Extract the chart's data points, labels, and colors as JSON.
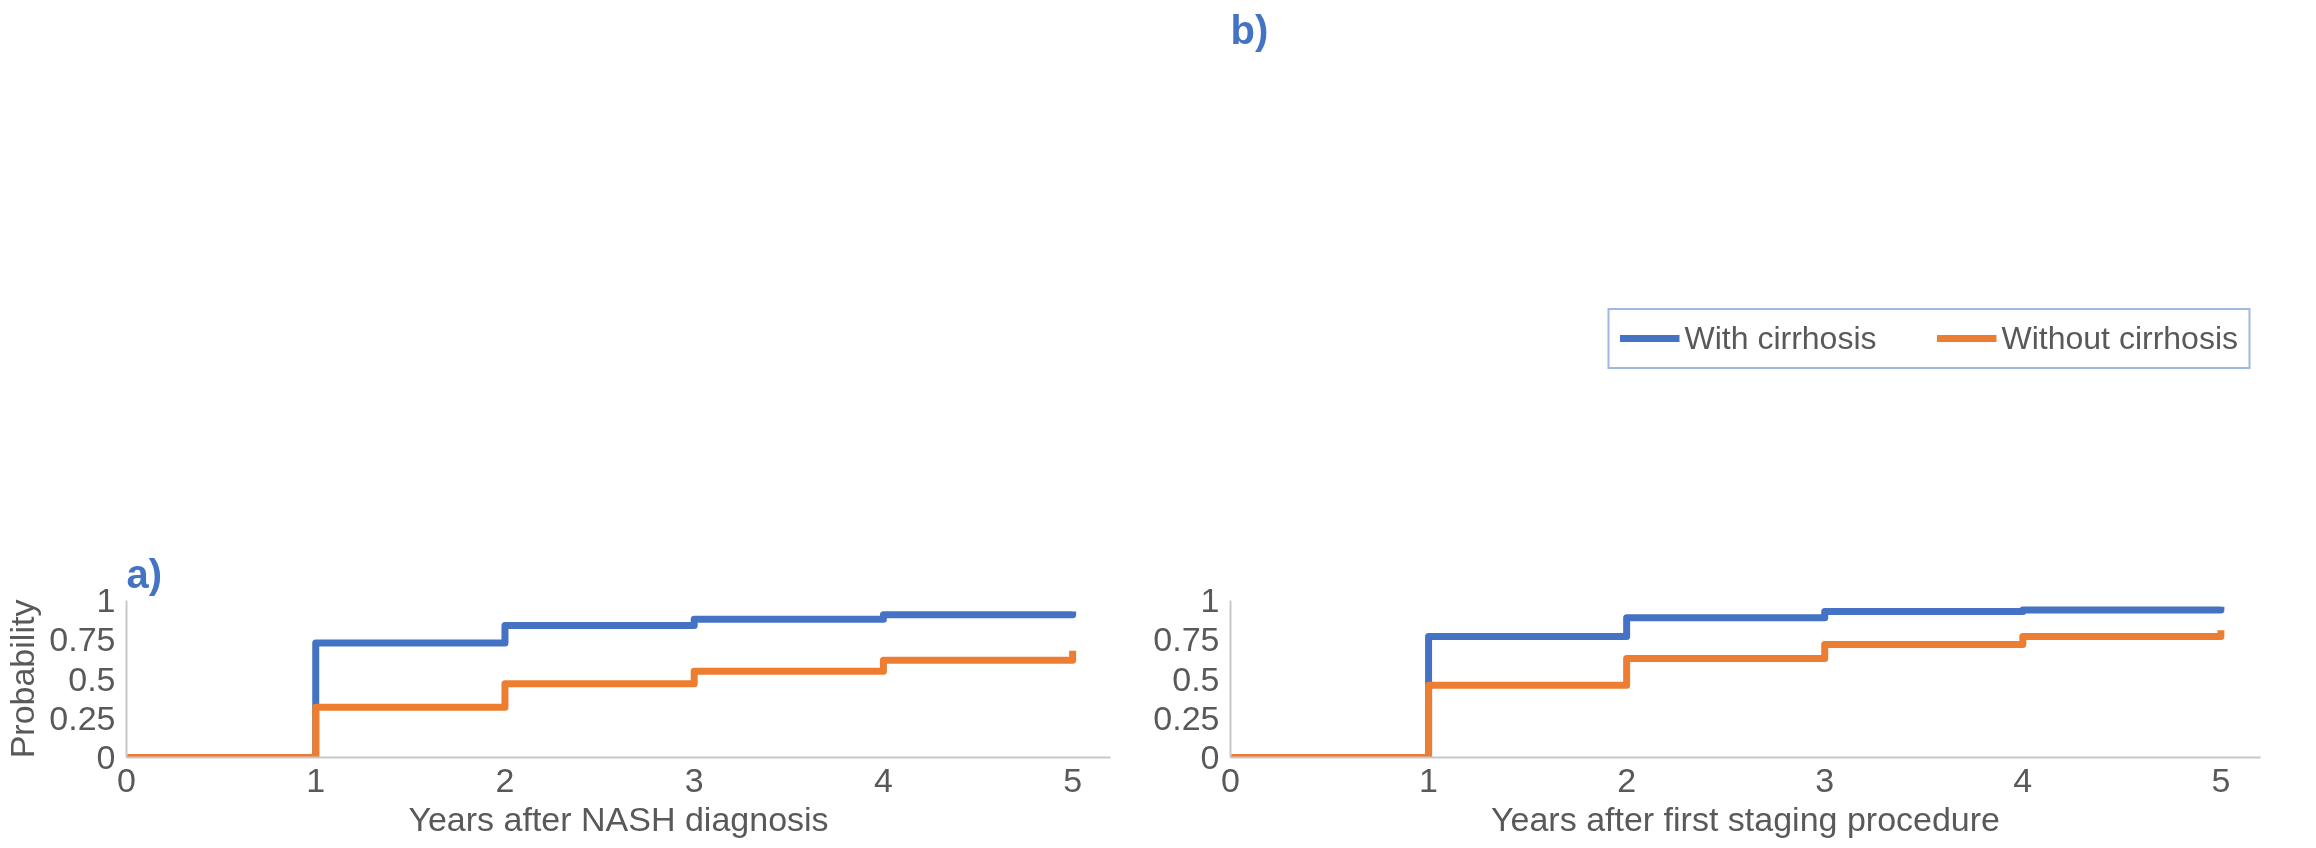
{
  "chart_data": [
    {
      "type": "step",
      "title": "a)",
      "xlabel": "Years after NASH diagnosis",
      "ylabel": "Probability",
      "x": [
        0,
        1,
        2,
        3,
        4,
        5
      ],
      "series": [
        {
          "color": "#4472c4",
          "values": [
            0,
            0.73,
            0.84,
            0.88,
            0.91,
            0.93
          ]
        },
        {
          "color": "#ed7d31",
          "values": [
            0,
            0.32,
            0.47,
            0.55,
            0.62,
            0.68
          ]
        }
      ],
      "xlim": [
        0,
        5.2
      ],
      "xticks": [
        0,
        1,
        2,
        3,
        4,
        5
      ],
      "ylim": [
        0,
        1
      ],
      "yticks": [
        0,
        0.25,
        0.5,
        0.75,
        1
      ],
      "grid": false,
      "legend": false
    },
    {
      "type": "step",
      "title": "b)",
      "xlabel": "Years after first staging procedure",
      "x": [
        0,
        1,
        2,
        3,
        4,
        5
      ],
      "series": [
        {
          "name": "With cirrhosis",
          "color": "#4472c4",
          "values": [
            0,
            0.77,
            0.89,
            0.93,
            0.94,
            0.96
          ]
        },
        {
          "name": "Without cirrhosis",
          "color": "#ed7d31",
          "values": [
            0,
            0.46,
            0.63,
            0.72,
            0.77,
            0.81
          ]
        }
      ],
      "xlim": [
        0,
        5.2
      ],
      "xticks": [
        0,
        1,
        2,
        3,
        4,
        5
      ],
      "ylim": [
        0,
        1
      ],
      "yticks": [
        0,
        0.25,
        0.5,
        0.75,
        1
      ],
      "grid": false,
      "legend": "top"
    }
  ]
}
